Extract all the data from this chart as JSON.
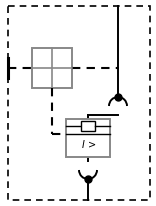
{
  "fig_width": 1.56,
  "fig_height": 2.06,
  "dpi": 100,
  "bg_color": "#ffffff",
  "line_color": "#000000",
  "gray_color": "#888888",
  "lw_main": 1.4,
  "lw_dash": 1.5,
  "lw_gray": 1.4,
  "label_I": "I >"
}
